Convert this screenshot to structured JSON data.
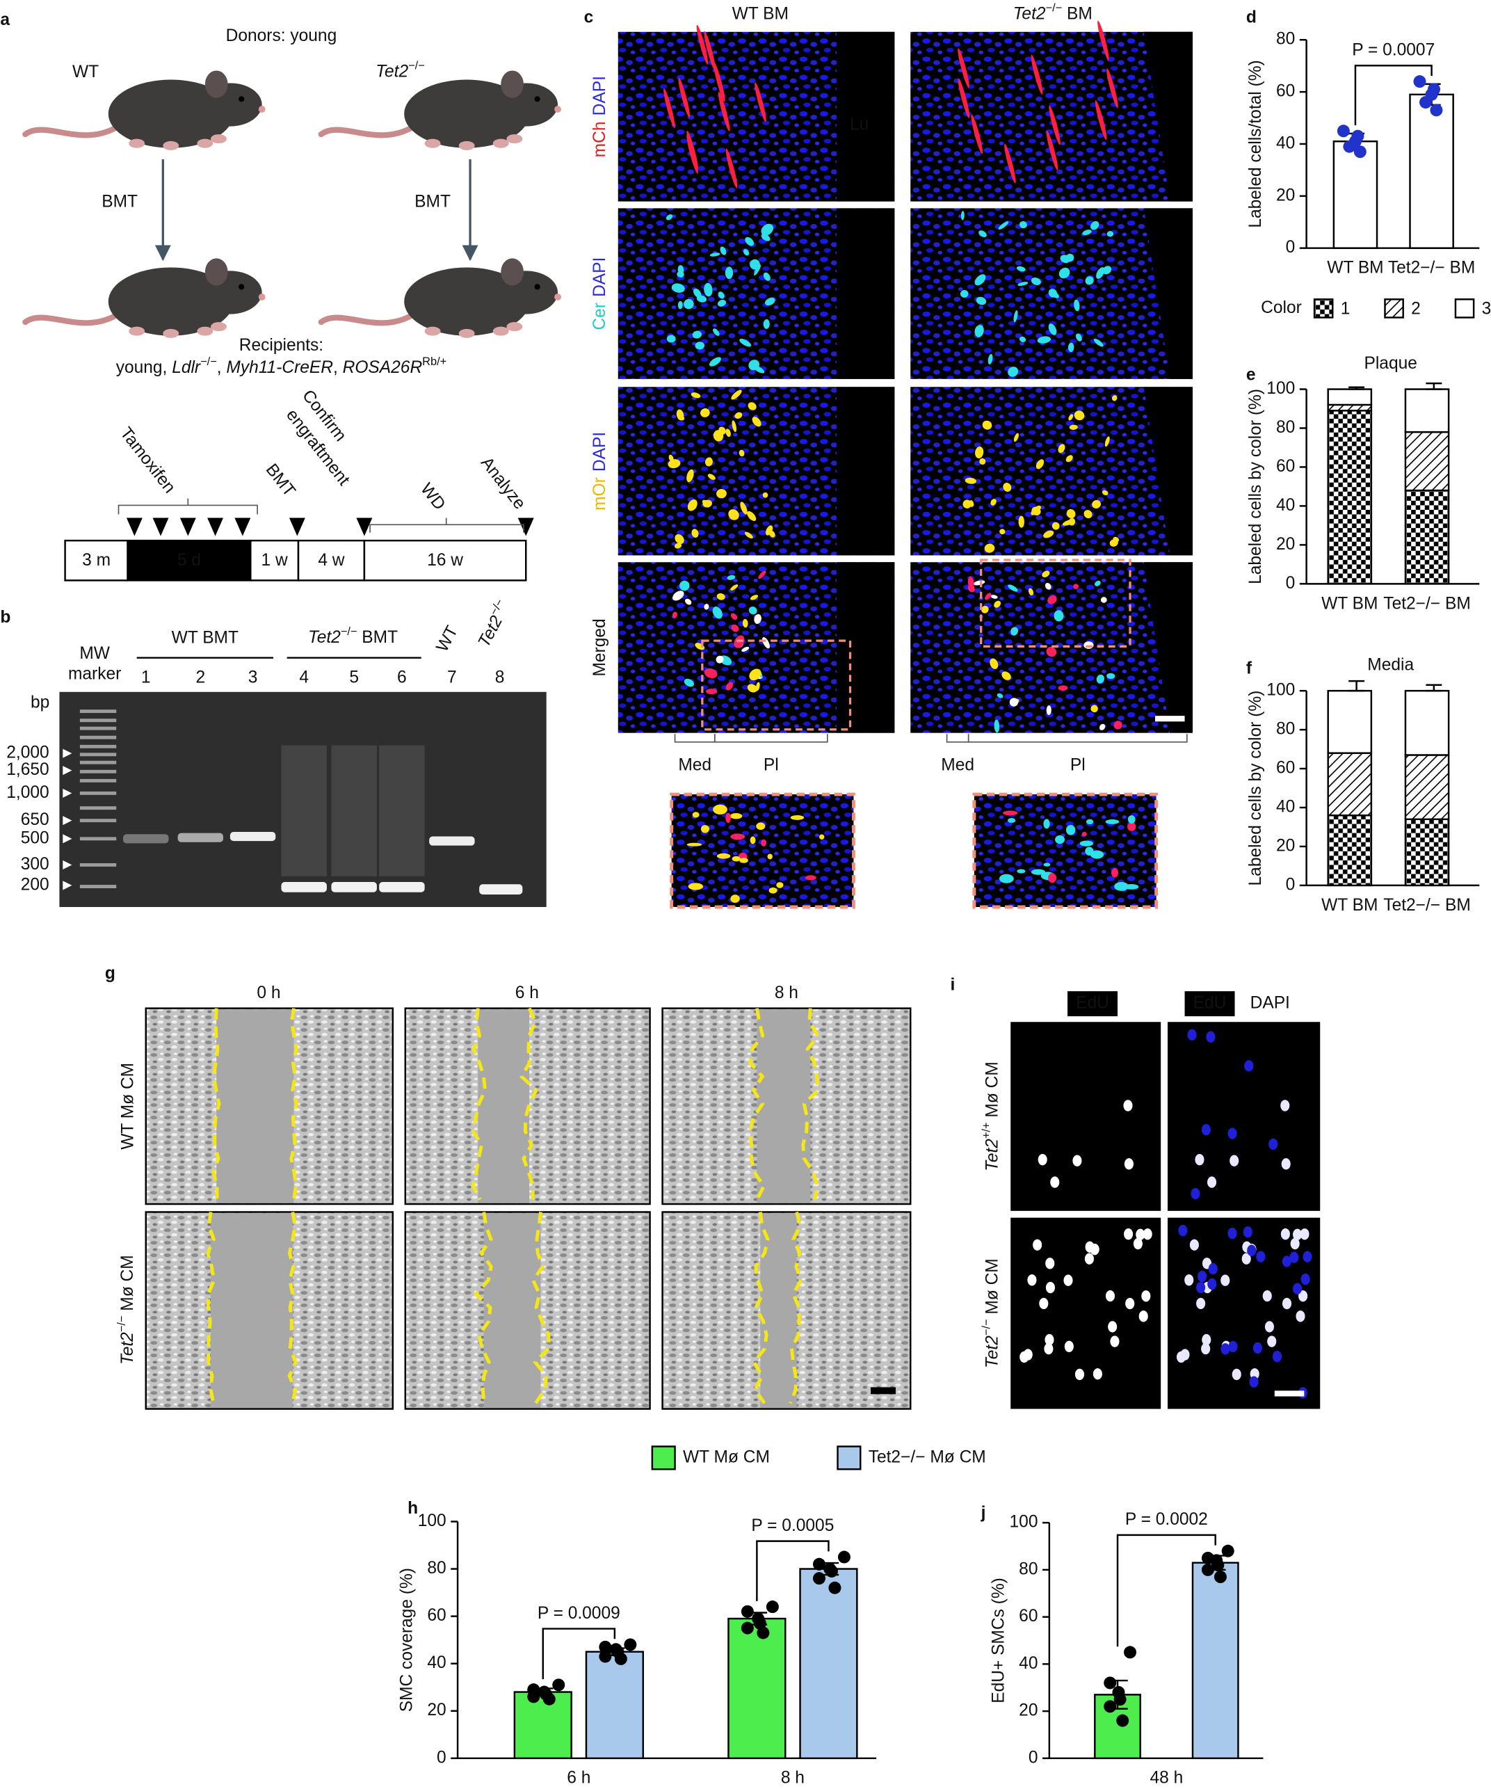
{
  "panel_labels": [
    "a",
    "b",
    "c",
    "d",
    "e",
    "f",
    "g",
    "h",
    "i",
    "j"
  ],
  "panel_a": {
    "donors": "Donors: young",
    "wt": "WT",
    "tet2": [
      "Tet2",
      "−/−"
    ],
    "bmt_left": "BMT",
    "bmt_right": "BMT",
    "recipients": "Recipients:",
    "recipient_genotype": [
      "young, ",
      "Ldlr",
      "−/−",
      ", ",
      "Myh11-CreER",
      ", ",
      "ROSA26R",
      "Rb/+"
    ],
    "timeline_events": [
      "Tamoxifen",
      "BMT",
      "Confirm",
      "engraftment",
      "WD",
      "Analyze"
    ],
    "timeline_periods": [
      "3 m",
      "5 d",
      "1 w",
      "4 w",
      "16 w"
    ]
  },
  "panel_b": {
    "marker": [
      "MW",
      "marker"
    ],
    "bp": "bp",
    "group_wt": "WT BMT",
    "group_tet2": [
      "Tet2",
      "−/−",
      " BMT"
    ],
    "lane7": "WT",
    "lane8": [
      "Tet2",
      "−/−"
    ],
    "lanes": [
      "1",
      "2",
      "3",
      "4",
      "5",
      "6",
      "7",
      "8"
    ],
    "sizes": [
      "2,000",
      "1,650",
      "1,000",
      "650",
      "500",
      "300",
      "200"
    ]
  },
  "panel_c": {
    "col_wt": "WT BM",
    "col_tet2": [
      "Tet2",
      "−/−",
      " BM"
    ],
    "rows": [
      [
        "mCh",
        "DAPI"
      ],
      [
        "Cer",
        "DAPI"
      ],
      [
        "mOr",
        "DAPI"
      ],
      [
        "Merged"
      ]
    ],
    "lumen": "Lu",
    "regions": [
      "Med",
      "Pl",
      "Med",
      "Pl"
    ]
  },
  "panel_g": {
    "times": [
      "0 h",
      "6 h",
      "8 h"
    ],
    "row_wt": "WT Mø CM",
    "row_tet2": [
      "Tet2",
      "−/−",
      " Mø CM"
    ]
  },
  "panel_i": {
    "col1": "EdU",
    "col2": [
      "EdU",
      "DAPI"
    ],
    "row1": [
      "Tet2",
      "+/+",
      " Mø CM"
    ],
    "row2": [
      "Tet2",
      "−/−",
      " Mø CM"
    ]
  },
  "chart_data": [
    {
      "type": "bar",
      "ylabel": "Labeled cells/total (%)",
      "categories": [
        "WT BM",
        "Tet2−/− BM"
      ],
      "values": [
        41,
        59
      ],
      "errors": [
        3,
        4
      ],
      "points": [
        [
          37,
          39,
          41,
          43,
          45
        ],
        [
          53,
          56,
          59,
          61,
          64
        ]
      ],
      "color": "#ffffff",
      "point_color": "#2233cc",
      "ylim": [
        0,
        80
      ],
      "yticks": [
        0,
        20,
        40,
        60,
        80
      ],
      "annotations": [
        "P = 0.0007"
      ]
    },
    {
      "type": "stacked_bar",
      "title": "Plaque",
      "ylabel": "Labeled cells by color (%)",
      "legend_title": "Color",
      "categories": [
        "WT BM",
        "Tet2−/− BM"
      ],
      "series": [
        {
          "name": "1",
          "pattern": "checker",
          "values": [
            89,
            48
          ],
          "errors": [
            2,
            2
          ]
        },
        {
          "name": "2",
          "pattern": "hatch",
          "values": [
            3,
            30
          ],
          "errors": [
            2,
            4
          ]
        },
        {
          "name": "3",
          "pattern": "blank",
          "values": [
            8,
            22
          ],
          "errors": [
            1,
            3
          ]
        }
      ],
      "ylim": [
        0,
        100
      ],
      "yticks": [
        0,
        20,
        40,
        60,
        80,
        100
      ]
    },
    {
      "type": "stacked_bar",
      "title": "Media",
      "ylabel": "Labeled cells by color (%)",
      "categories": [
        "WT BM",
        "Tet2−/− BM"
      ],
      "series": [
        {
          "pattern": "checker",
          "values": [
            36,
            34
          ],
          "errors": [
            3,
            5
          ]
        },
        {
          "pattern": "hatch",
          "values": [
            32,
            33
          ],
          "errors": [
            5,
            4
          ]
        },
        {
          "pattern": "blank",
          "values": [
            32,
            33
          ],
          "errors": [
            5,
            3
          ]
        }
      ],
      "ylim": [
        0,
        100
      ],
      "yticks": [
        0,
        20,
        40,
        60,
        80,
        100
      ]
    },
    {
      "type": "grouped_bar",
      "ylabel": "SMC coverage (%)",
      "categories": [
        "6 h",
        "8 h"
      ],
      "series": [
        {
          "name": "WT Mø CM",
          "color": "#4ded4d",
          "values": [
            28,
            59
          ],
          "errors": [
            1.5,
            2.5
          ],
          "points": [
            [
              25,
              26,
              27,
              28,
              29,
              31
            ],
            [
              53,
              55,
              57,
              59,
              62,
              64
            ]
          ]
        },
        {
          "name": "Tet2−/− Mø CM",
          "color": "#a9c9ec",
          "values": [
            45,
            80
          ],
          "errors": [
            1.5,
            2.5
          ],
          "points": [
            [
              42,
              43,
              45,
              46,
              47,
              48
            ],
            [
              72,
              76,
              79,
              80,
              82,
              85
            ]
          ]
        }
      ],
      "ylim": [
        0,
        100
      ],
      "yticks": [
        0,
        20,
        40,
        60,
        80,
        100
      ],
      "annotations": [
        "P = 0.0009",
        "P = 0.0005"
      ]
    },
    {
      "type": "grouped_bar",
      "ylabel": "EdU+ SMCs (%)",
      "categories": [
        "48 h"
      ],
      "series": [
        {
          "color": "#4ded4d",
          "values": [
            27
          ],
          "errors": [
            6
          ],
          "points": [
            [
              16,
              22,
              25,
              28,
              32,
              45
            ]
          ]
        },
        {
          "color": "#a9c9ec",
          "values": [
            83
          ],
          "errors": [
            3
          ],
          "points": [
            [
              77,
              80,
              82,
              84,
              85,
              88
            ]
          ]
        }
      ],
      "ylim": [
        0,
        100
      ],
      "yticks": [
        0,
        20,
        40,
        60,
        80,
        100
      ],
      "annotations": [
        "P = 0.0002"
      ]
    }
  ]
}
